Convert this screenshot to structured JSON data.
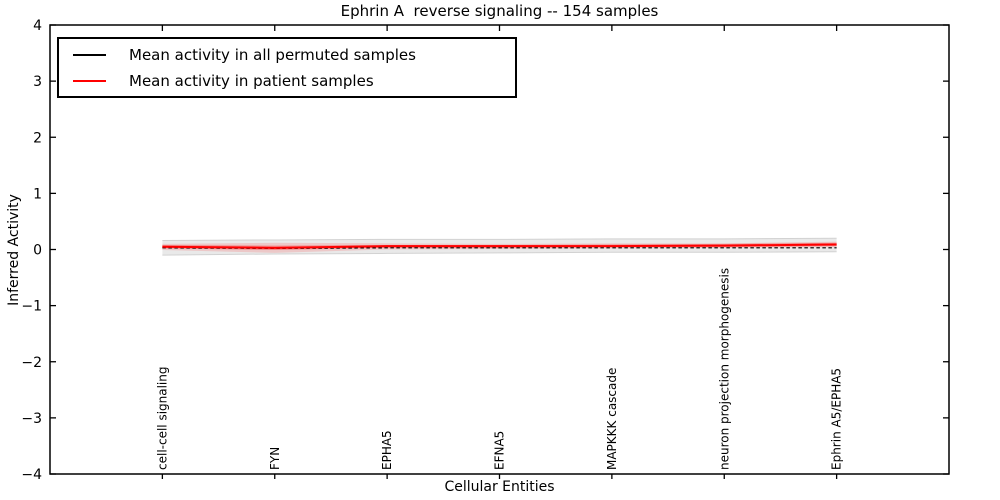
{
  "title": "Ephrin A  reverse signaling -- 154 samples",
  "axes": {
    "xlabel": "Cellular Entities",
    "ylabel": "Inferred Activity"
  },
  "legend": {
    "items": [
      {
        "label": "Mean activity in all permuted samples",
        "color": "#000000"
      },
      {
        "label": "Mean activity in patient samples",
        "color": "#ff0000"
      }
    ]
  },
  "chart_data": {
    "type": "line",
    "title": "Ephrin A  reverse signaling -- 154 samples",
    "xlabel": "Cellular Entities",
    "ylabel": "Inferred Activity",
    "xlim": [
      0,
      8
    ],
    "ylim": [
      -4,
      4
    ],
    "grid": false,
    "legend_position": "upper left",
    "yticks": [
      -4,
      -3,
      -2,
      -1,
      0,
      1,
      2,
      3,
      4
    ],
    "ytick_labels": [
      "−4",
      "−3",
      "−2",
      "−1",
      "0",
      "1",
      "2",
      "3",
      "4"
    ],
    "categories": [
      "cell-cell signaling",
      "FYN",
      "EPHA5",
      "EFNA5",
      "MAPKKK cascade",
      "neuron projection morphogenesis",
      "Ephrin A5/EPHA5"
    ],
    "x": [
      1,
      2,
      3,
      4,
      5,
      6,
      7
    ],
    "series": [
      {
        "name": "Mean activity in all permuted samples",
        "color": "#000000",
        "style": "dashed",
        "width": 1.2,
        "values": [
          0.03,
          0.02,
          0.03,
          0.03,
          0.03,
          0.03,
          0.03
        ]
      },
      {
        "name": "Mean activity in patient samples",
        "color": "#ff0000",
        "style": "solid",
        "width": 2,
        "values": [
          0.05,
          0.03,
          0.06,
          0.06,
          0.06,
          0.07,
          0.09
        ]
      }
    ],
    "bands": [
      {
        "name": "permuted-range-band",
        "fill": "#e9e9e9",
        "edge": "#d2d2d2",
        "upper": [
          0.16,
          0.17,
          0.18,
          0.18,
          0.19,
          0.19,
          0.2
        ],
        "lower": [
          -0.1,
          -0.08,
          -0.07,
          -0.06,
          -0.05,
          -0.05,
          -0.04
        ]
      },
      {
        "name": "patient-range-band-outer",
        "fill": "rgba(255,0,0,0.14)",
        "edge": "none",
        "upper": [
          0.1,
          0.12,
          0.11,
          0.1,
          0.11,
          0.11,
          0.14
        ],
        "lower": [
          -0.01,
          -0.06,
          0.0,
          0.01,
          0.02,
          0.03,
          0.04
        ]
      },
      {
        "name": "patient-range-band-inner",
        "fill": "rgba(255,0,0,0.30)",
        "edge": "none",
        "upper": [
          0.08,
          0.07,
          0.08,
          0.08,
          0.09,
          0.1,
          0.12
        ],
        "lower": [
          0.02,
          -0.01,
          0.03,
          0.03,
          0.04,
          0.04,
          0.06
        ]
      }
    ]
  }
}
